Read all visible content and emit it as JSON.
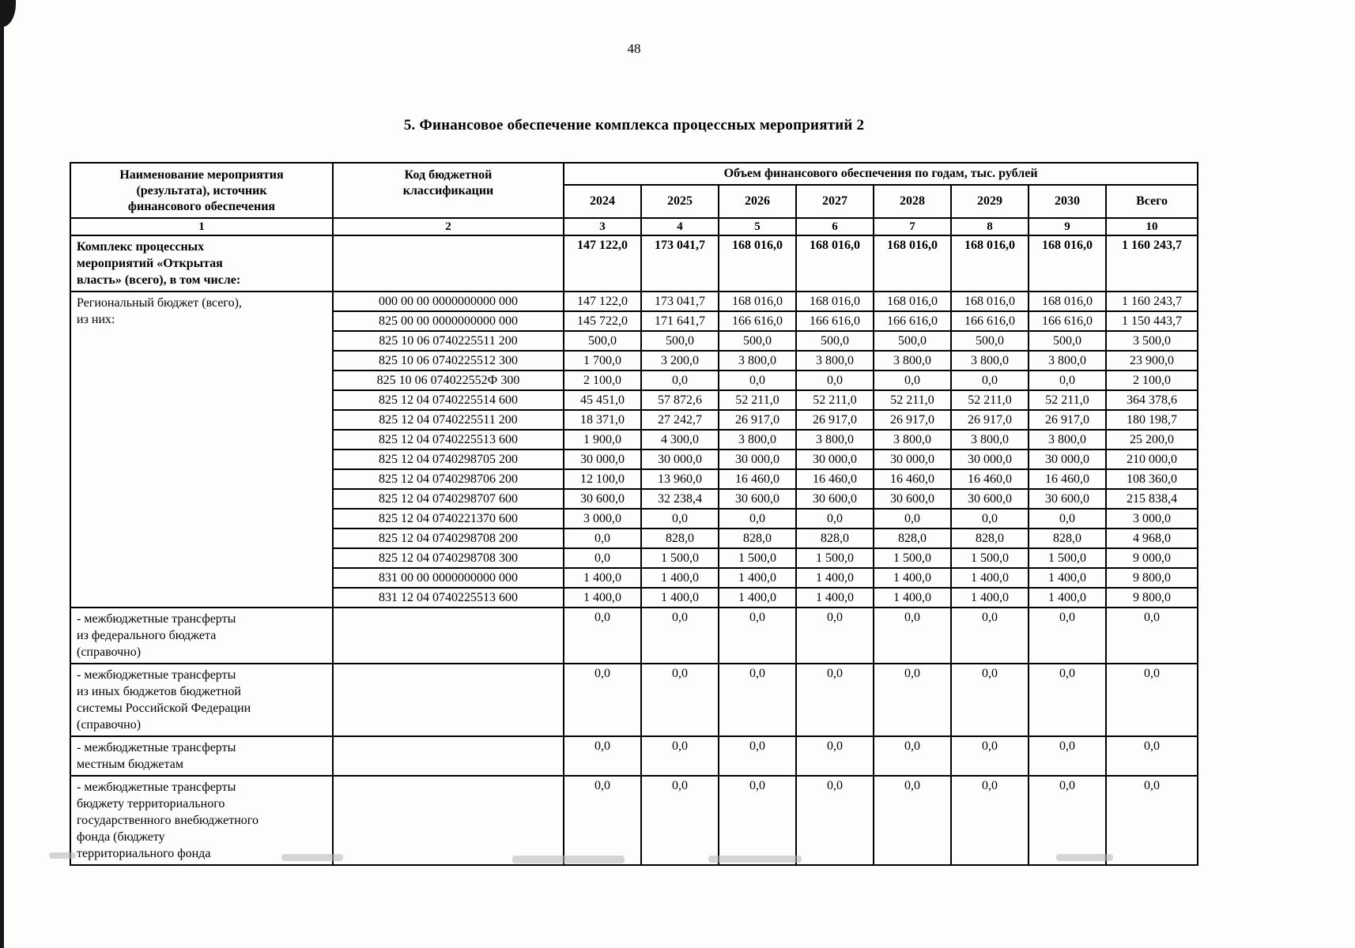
{
  "page": {
    "number": "48",
    "title": "5. Финансовое обеспечение комплекса процессных мероприятий 2"
  },
  "table": {
    "header": {
      "name_col": "Наименование мероприятия\n(результата), источник\nфинансового обеспечения",
      "code_col": "Код бюджетной\nклассификации",
      "volume_title": "Объем финансового обеспечения по годам, тыс. рублей",
      "year_cols": [
        "2024",
        "2025",
        "2026",
        "2027",
        "2028",
        "2029",
        "2030",
        "Всего"
      ],
      "index_row": [
        "1",
        "2",
        "3",
        "4",
        "5",
        "6",
        "7",
        "8",
        "9",
        "10"
      ]
    },
    "rows": [
      {
        "name": "Комплекс процессных\nмероприятий «Открытая\nвласть» (всего), в том числе:",
        "bold": true,
        "code": "",
        "values": [
          "147 122,0",
          "173 041,7",
          "168 016,0",
          "168 016,0",
          "168 016,0",
          "168 016,0",
          "168 016,0",
          "1 160 243,7"
        ]
      },
      {
        "name": "Региональный бюджет (всего),\nиз них:",
        "name_rowspan": 16,
        "code": "000 00 00 0000000000 000",
        "values": [
          "147 122,0",
          "173 041,7",
          "168 016,0",
          "168 016,0",
          "168 016,0",
          "168 016,0",
          "168 016,0",
          "1 160 243,7"
        ]
      },
      {
        "code": "825 00 00 0000000000 000",
        "values": [
          "145 722,0",
          "171 641,7",
          "166 616,0",
          "166 616,0",
          "166 616,0",
          "166 616,0",
          "166 616,0",
          "1 150 443,7"
        ]
      },
      {
        "code": "825 10 06 0740225511 200",
        "values": [
          "500,0",
          "500,0",
          "500,0",
          "500,0",
          "500,0",
          "500,0",
          "500,0",
          "3 500,0"
        ]
      },
      {
        "code": "825 10 06 0740225512 300",
        "values": [
          "1 700,0",
          "3 200,0",
          "3 800,0",
          "3 800,0",
          "3 800,0",
          "3 800,0",
          "3 800,0",
          "23 900,0"
        ]
      },
      {
        "code": "825 10 06 074022552Ф 300",
        "values": [
          "2 100,0",
          "0,0",
          "0,0",
          "0,0",
          "0,0",
          "0,0",
          "0,0",
          "2 100,0"
        ]
      },
      {
        "code": "825 12 04 0740225514 600",
        "values": [
          "45 451,0",
          "57 872,6",
          "52 211,0",
          "52 211,0",
          "52 211,0",
          "52 211,0",
          "52 211,0",
          "364 378,6"
        ]
      },
      {
        "code": "825 12 04 0740225511 200",
        "values": [
          "18 371,0",
          "27 242,7",
          "26 917,0",
          "26 917,0",
          "26 917,0",
          "26 917,0",
          "26 917,0",
          "180 198,7"
        ]
      },
      {
        "code": "825 12 04 0740225513 600",
        "values": [
          "1 900,0",
          "4 300,0",
          "3 800,0",
          "3 800,0",
          "3 800,0",
          "3 800,0",
          "3 800,0",
          "25 200,0"
        ]
      },
      {
        "code": "825 12 04 0740298705 200",
        "values": [
          "30 000,0",
          "30 000,0",
          "30 000,0",
          "30 000,0",
          "30 000,0",
          "30 000,0",
          "30 000,0",
          "210 000,0"
        ]
      },
      {
        "code": "825 12 04 0740298706 200",
        "values": [
          "12 100,0",
          "13 960,0",
          "16 460,0",
          "16 460,0",
          "16 460,0",
          "16 460,0",
          "16 460,0",
          "108 360,0"
        ]
      },
      {
        "code": "825 12 04 0740298707 600",
        "values": [
          "30 600,0",
          "32 238,4",
          "30 600,0",
          "30 600,0",
          "30 600,0",
          "30 600,0",
          "30 600,0",
          "215 838,4"
        ]
      },
      {
        "code": "825 12 04 0740221370 600",
        "values": [
          "3 000,0",
          "0,0",
          "0,0",
          "0,0",
          "0,0",
          "0,0",
          "0,0",
          "3 000,0"
        ]
      },
      {
        "code": "825 12 04 0740298708 200",
        "values": [
          "0,0",
          "828,0",
          "828,0",
          "828,0",
          "828,0",
          "828,0",
          "828,0",
          "4 968,0"
        ]
      },
      {
        "code": "825 12 04 0740298708 300",
        "values": [
          "0,0",
          "1 500,0",
          "1 500,0",
          "1 500,0",
          "1 500,0",
          "1 500,0",
          "1 500,0",
          "9 000,0"
        ]
      },
      {
        "code": "831 00 00 0000000000 000",
        "values": [
          "1 400,0",
          "1 400,0",
          "1 400,0",
          "1 400,0",
          "1 400,0",
          "1 400,0",
          "1 400,0",
          "9 800,0"
        ]
      },
      {
        "code": "831 12 04 0740225513 600",
        "values": [
          "1 400,0",
          "1 400,0",
          "1 400,0",
          "1 400,0",
          "1 400,0",
          "1 400,0",
          "1 400,0",
          "9 800,0"
        ]
      },
      {
        "name": "- межбюджетные трансферты\nиз федерального бюджета\n(справочно)",
        "code": "",
        "values": [
          "0,0",
          "0,0",
          "0,0",
          "0,0",
          "0,0",
          "0,0",
          "0,0",
          "0,0"
        ]
      },
      {
        "name": "- межбюджетные трансферты\nиз иных бюджетов бюджетной\nсистемы Российской Федерации\n(справочно)",
        "code": "",
        "values": [
          "0,0",
          "0,0",
          "0,0",
          "0,0",
          "0,0",
          "0,0",
          "0,0",
          "0,0"
        ]
      },
      {
        "name": "- межбюджетные трансферты\nместным бюджетам",
        "code": "",
        "values": [
          "0,0",
          "0,0",
          "0,0",
          "0,0",
          "0,0",
          "0,0",
          "0,0",
          "0,0"
        ]
      },
      {
        "name": "- межбюджетные трансферты\nбюджету территориального\nгосударственного внебюджетного\nфонда (бюджету\nтерриториального фонда",
        "code": "",
        "values": [
          "0,0",
          "0,0",
          "0,0",
          "0,0",
          "0,0",
          "0,0",
          "0,0",
          "0,0"
        ]
      }
    ]
  }
}
